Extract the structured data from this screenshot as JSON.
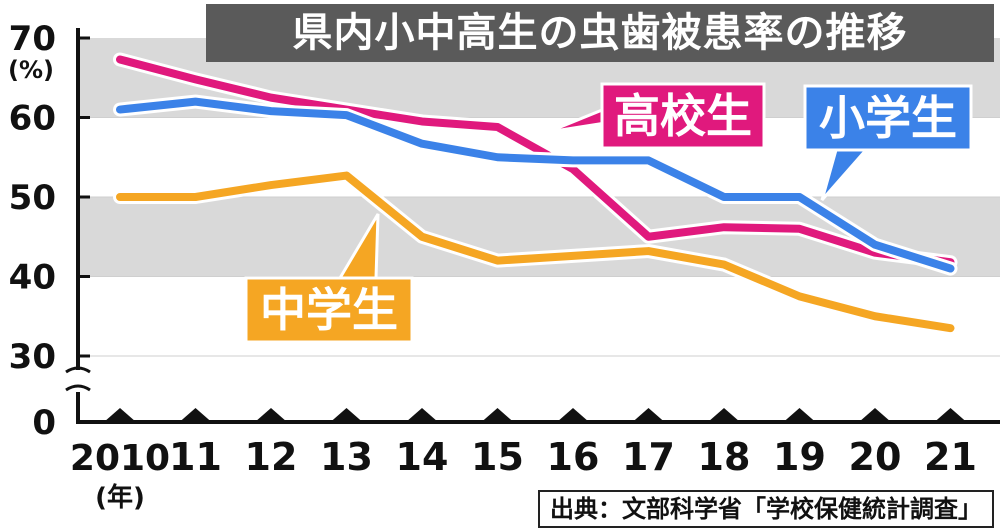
{
  "title": "県内小中高生の虫歯被患率の推移",
  "source": "出典：文部科学省「学校保健統計調査」",
  "chart_data": {
    "type": "line",
    "title": "県内小中高生の虫歯被患率の推移",
    "x": [
      "2010",
      "11",
      "12",
      "13",
      "14",
      "15",
      "16",
      "17",
      "18",
      "19",
      "20",
      "21"
    ],
    "x_unit": "(年)",
    "y_unit": "(%)",
    "yticks": [
      "70",
      "60",
      "50",
      "40",
      "30",
      "0"
    ],
    "ylim": [
      30,
      70
    ],
    "axis_break": true,
    "grid": "alternating gray bands",
    "series": [
      {
        "name": "高校生",
        "color": "#e0197d",
        "values": [
          67.3,
          64.8,
          62.5,
          61.0,
          59.5,
          58.8,
          53.5,
          45.0,
          46.2,
          46.0,
          43.0,
          41.8
        ]
      },
      {
        "name": "小学生",
        "color": "#3b82e8",
        "values": [
          61.0,
          62.0,
          60.8,
          60.3,
          56.7,
          55.0,
          54.6,
          54.6,
          50.0,
          50.0,
          44.0,
          41.0
        ]
      },
      {
        "name": "中学生",
        "color": "#f5a623",
        "values": [
          50.0,
          50.0,
          51.5,
          52.7,
          45.0,
          42.0,
          42.6,
          43.2,
          41.5,
          37.5,
          35.0,
          33.5
        ]
      }
    ]
  }
}
